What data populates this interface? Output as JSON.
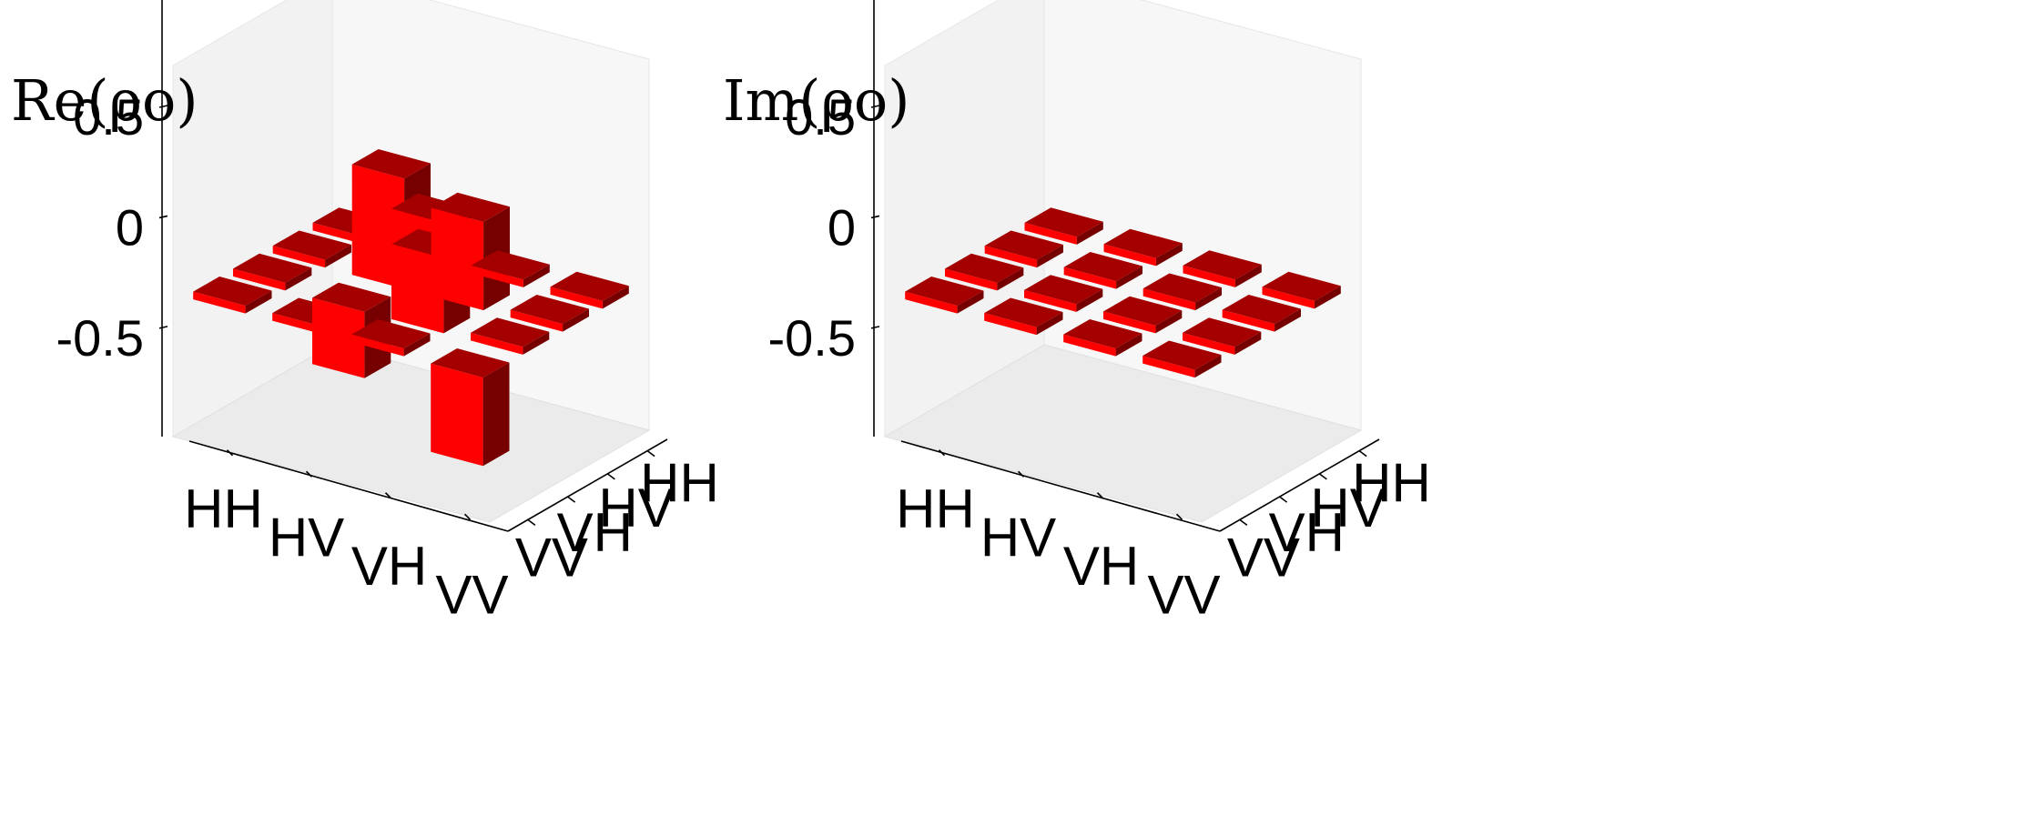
{
  "chart_data": [
    {
      "type": "bar3d",
      "title": "Re(ρo)",
      "x_categories": [
        "HH",
        "HV",
        "VH",
        "VV"
      ],
      "y_categories": [
        "HH",
        "HV",
        "VH",
        "VV"
      ],
      "z_ticks": [
        "0.5",
        "0",
        "-0.5"
      ],
      "z_tick_values": [
        0.5,
        0,
        -0.5
      ],
      "zlim": [
        -0.62,
        0.78
      ],
      "matrix": [
        [
          0.0,
          0.0,
          0.0,
          0.0
        ],
        [
          0.0,
          0.5,
          -0.3,
          0.0
        ],
        [
          0.0,
          0.4,
          0.5,
          0.0
        ],
        [
          0.0,
          0.0,
          0.0,
          -0.4
        ]
      ],
      "colors": {
        "top": "#a50000",
        "left": "#ff0000",
        "right": "#760000"
      }
    },
    {
      "type": "bar3d",
      "title": "Im(ρo)",
      "x_categories": [
        "HH",
        "HV",
        "VH",
        "VV"
      ],
      "y_categories": [
        "HH",
        "HV",
        "VH",
        "VV"
      ],
      "z_ticks": [
        "0.5",
        "0",
        "-0.5"
      ],
      "z_tick_values": [
        0.5,
        0,
        -0.5
      ],
      "zlim": [
        -0.62,
        0.78
      ],
      "matrix": [
        [
          0.0,
          0.0,
          0.0,
          0.0
        ],
        [
          0.0,
          0.0,
          0.0,
          0.0
        ],
        [
          0.0,
          0.0,
          0.0,
          0.0
        ],
        [
          0.0,
          0.0,
          0.0,
          0.0
        ]
      ],
      "colors": {
        "top": "#a50000",
        "left": "#ff0000",
        "right": "#760000"
      }
    }
  ]
}
